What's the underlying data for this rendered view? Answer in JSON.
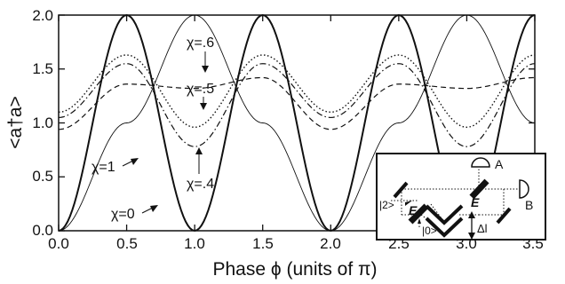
{
  "chart_data": {
    "type": "line",
    "ylabel": "<a†a>",
    "xlabel": "Phase ϕ (units  of π)",
    "xlim": [
      0.0,
      3.5
    ],
    "ylim": [
      0.0,
      2.0
    ],
    "xticks": [
      "0.0",
      "0.5",
      "1.0",
      "1.5",
      "2.0",
      "2.5",
      "3.0",
      "3.5"
    ],
    "yticks": [
      "0.0",
      "0.5",
      "1.0",
      "1.5",
      "2.0"
    ],
    "series": [
      {
        "name": "χ=1",
        "style": "thin-solid",
        "x": [
          0.0,
          0.5,
          1.0,
          1.5,
          2.0,
          2.5,
          3.0,
          3.5
        ],
        "y": [
          0.0,
          1.0,
          2.0,
          1.0,
          0.0,
          1.0,
          2.0,
          1.0
        ]
      },
      {
        "name": "χ=0",
        "style": "thick-solid",
        "x": [
          0.0,
          0.5,
          1.0,
          1.5,
          2.0,
          2.5,
          3.0,
          3.5
        ],
        "y": [
          0.0,
          2.0,
          0.0,
          2.0,
          0.0,
          2.0,
          0.0,
          2.0
        ]
      },
      {
        "name": "χ=.4",
        "style": "dash-dot",
        "x": [
          0.0,
          0.5,
          1.0,
          1.5,
          2.0,
          2.5,
          3.0,
          3.5
        ],
        "y": [
          1.05,
          1.55,
          0.78,
          1.55,
          1.05,
          1.55,
          0.78,
          1.55
        ]
      },
      {
        "name": "χ=.5",
        "style": "dashed",
        "x": [
          0.0,
          0.5,
          1.0,
          1.5,
          2.0,
          2.5,
          3.0,
          3.5
        ],
        "y": [
          0.94,
          1.36,
          1.32,
          1.42,
          0.94,
          1.36,
          1.32,
          1.42
        ]
      },
      {
        "name": "χ=.6",
        "style": "dotted",
        "x": [
          0.0,
          0.5,
          1.0,
          1.5,
          2.0,
          2.5,
          3.0,
          3.5
        ],
        "y": [
          1.1,
          1.63,
          0.96,
          1.63,
          1.1,
          1.63,
          0.96,
          1.63
        ]
      }
    ],
    "annotations": [
      "χ=.6",
      "χ=.5",
      "χ=.4",
      "χ=1",
      "χ=0"
    ],
    "grid": false,
    "legend": "none"
  },
  "inset": {
    "labels": {
      "E_left": "E",
      "E_right": "E",
      "port_two": "|2>",
      "port_zero": "|0>",
      "delta_l": "Δl",
      "detector_a": "A",
      "detector_b": "B"
    }
  }
}
